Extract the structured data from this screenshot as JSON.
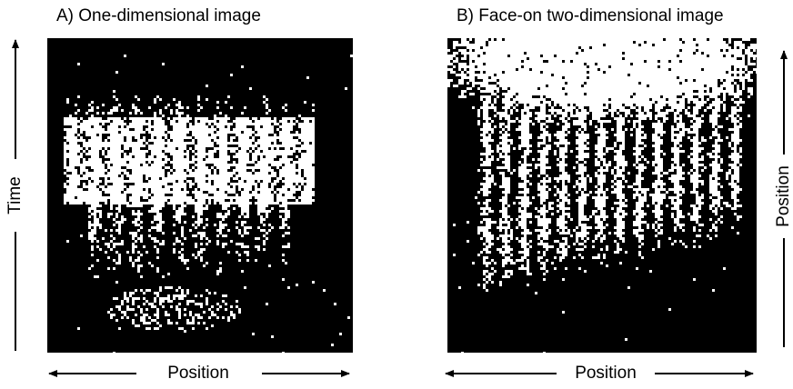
{
  "panels": [
    {
      "title": "A) One-dimensional image",
      "x_label": "Position",
      "y_label": "Time"
    },
    {
      "title": "B) Face-on two-dimensional image",
      "x_label": "Position",
      "y_label": "Position"
    }
  ]
}
